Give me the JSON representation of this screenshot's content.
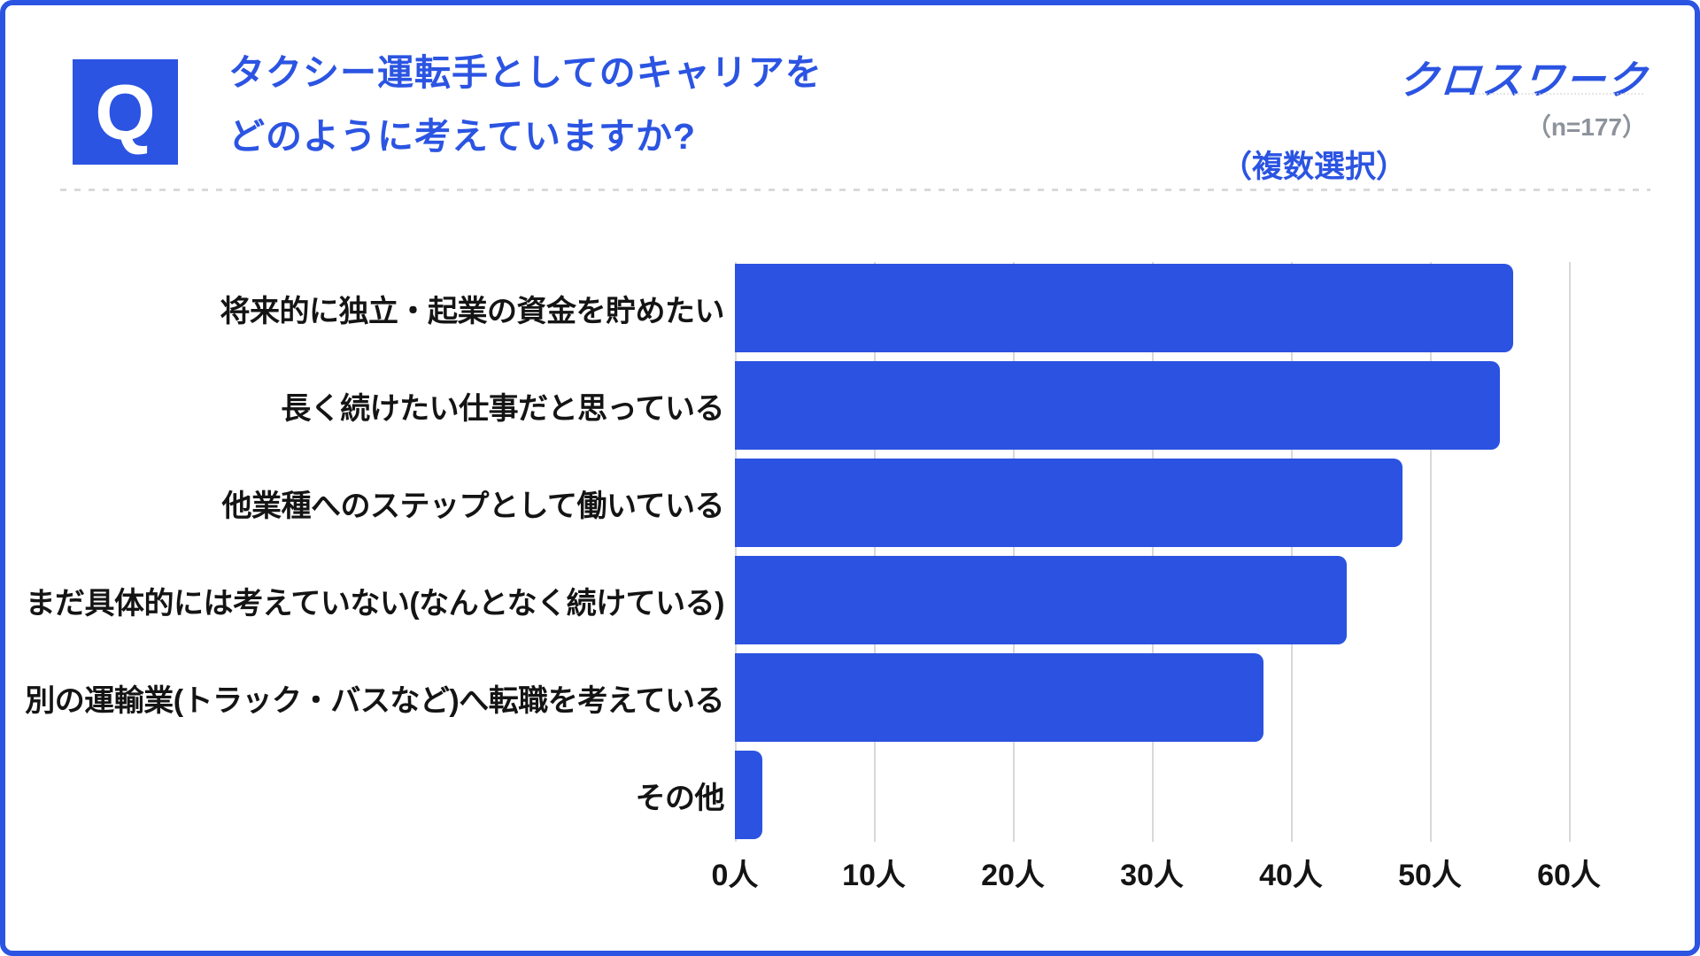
{
  "header": {
    "q_badge": "Q",
    "title_line1": "タクシー運転手としてのキャリアを",
    "title_line2": "どのように考えていますか?",
    "multi_select_note": "（複数選択）",
    "logo": "クロスワーク",
    "sample_size": "（n=177）"
  },
  "colors": {
    "brand_blue": "#2B54E2",
    "bar_blue": "#2B52E0",
    "text_black": "#141414",
    "muted_gray": "#8D929B",
    "grid_gray": "#D8D8D8",
    "dash_gray": "#D9D9D9"
  },
  "chart_data": {
    "type": "bar",
    "orientation": "horizontal",
    "title": "タクシー運転手としてのキャリアをどのように考えていますか?（複数選択）",
    "categories": [
      "将来的に独立・起業の資金を貯めたい",
      "長く続けたい仕事だと思っている",
      "他業種へのステップとして働いている",
      "まだ具体的には考えていない(なんとなく続けている)",
      "別の運輸業(トラック・バスなど)へ転職を考えている",
      "その他"
    ],
    "values": [
      56,
      55,
      48,
      44,
      38,
      2
    ],
    "unit": "人",
    "xlim": [
      0,
      60
    ],
    "xticks": [
      0,
      10,
      20,
      30,
      40,
      50,
      60
    ],
    "xtick_labels": [
      "0人",
      "10人",
      "20人",
      "30人",
      "40人",
      "50人",
      "60人"
    ],
    "grid": "vertical",
    "legend": "none",
    "bar_color": "#2B52E0"
  }
}
